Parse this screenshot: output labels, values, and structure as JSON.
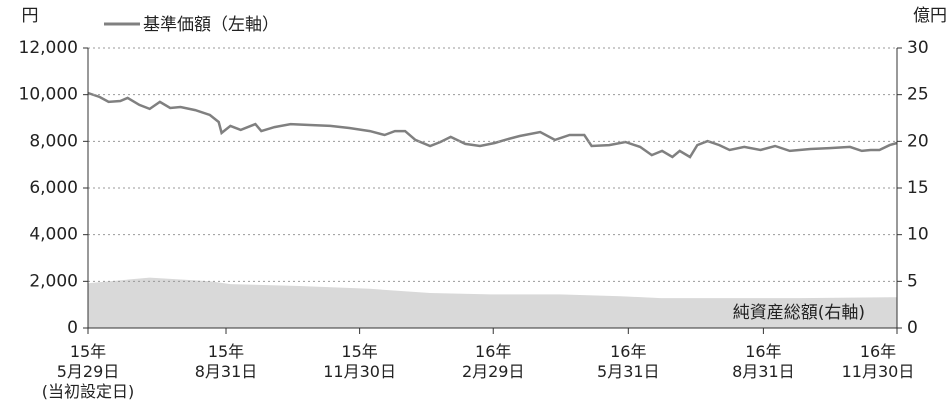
{
  "chart_data": {
    "type": "line",
    "y_unit": "円",
    "y2_unit": "億円",
    "annotation": "純資産総額(右軸)",
    "xlim": [
      0,
      551
    ],
    "xticks": [
      {
        "value": 0,
        "label": "15年\n5月29日\n(当初設定日)"
      },
      {
        "value": 94,
        "label": "15年\n8月31日"
      },
      {
        "value": 185,
        "label": "15年\n11月30日"
      },
      {
        "value": 276,
        "label": "16年\n2月29日"
      },
      {
        "value": 368,
        "label": "16年\n5月31日"
      },
      {
        "value": 460,
        "label": "16年\n8月31日"
      },
      {
        "value": 551,
        "label": "16年\n11月30日"
      }
    ],
    "ylim": [
      0,
      12000
    ],
    "yticks": [
      0,
      {
        "value": 2000,
        "label": "2,000"
      },
      {
        "value": 4000,
        "label": "4,000"
      },
      {
        "value": 6000,
        "label": "6,000"
      },
      {
        "value": 8000,
        "label": "8,000"
      },
      {
        "value": 10000,
        "label": "10,000"
      },
      {
        "value": 12000,
        "label": "12,000"
      }
    ],
    "y2lim": [
      0,
      30
    ],
    "y2ticks": [
      0,
      5,
      10,
      15,
      20,
      25,
      30
    ],
    "grid": true,
    "series": [
      {
        "name": "基準価額（左軸）",
        "color": "#808080",
        "x": [
          0,
          8,
          14,
          22,
          27,
          35,
          42,
          49,
          56,
          63,
          73,
          83,
          89,
          91,
          97,
          104,
          114,
          118,
          127,
          138,
          151,
          165,
          178,
          192,
          202,
          209,
          216,
          223,
          233,
          240,
          247,
          257,
          267,
          277,
          284,
          294,
          308,
          318,
          328,
          338,
          343,
          355,
          366,
          376,
          384,
          391,
          398,
          403,
          410,
          415,
          422,
          430,
          437,
          447,
          458,
          468,
          478,
          492,
          505,
          519,
          527,
          533,
          539,
          546,
          551
        ],
        "values": [
          10070,
          9900,
          9690,
          9730,
          9860,
          9560,
          9390,
          9690,
          9430,
          9470,
          9340,
          9130,
          8830,
          8360,
          8660,
          8490,
          8740,
          8440,
          8610,
          8740,
          8700,
          8660,
          8570,
          8440,
          8270,
          8440,
          8440,
          8060,
          7800,
          7970,
          8190,
          7890,
          7800,
          7930,
          8060,
          8230,
          8400,
          8060,
          8270,
          8270,
          7800,
          7840,
          7970,
          7760,
          7410,
          7590,
          7330,
          7590,
          7330,
          7840,
          8010,
          7840,
          7630,
          7760,
          7630,
          7800,
          7590,
          7670,
          7710,
          7760,
          7590,
          7630,
          7630,
          7840,
          7930
        ]
      },
      {
        "name": "純資産総額(右軸)",
        "color": "#d9d9d9",
        "axis": "y2",
        "kind": "area",
        "x": [
          0,
          42,
          83,
          97,
          144,
          192,
          233,
          274,
          321,
          363,
          390,
          431,
          485,
          551
        ],
        "values": [
          4.8,
          5.4,
          5.0,
          4.7,
          4.5,
          4.2,
          3.75,
          3.6,
          3.6,
          3.4,
          3.2,
          3.2,
          3.2,
          3.3
        ]
      }
    ]
  }
}
